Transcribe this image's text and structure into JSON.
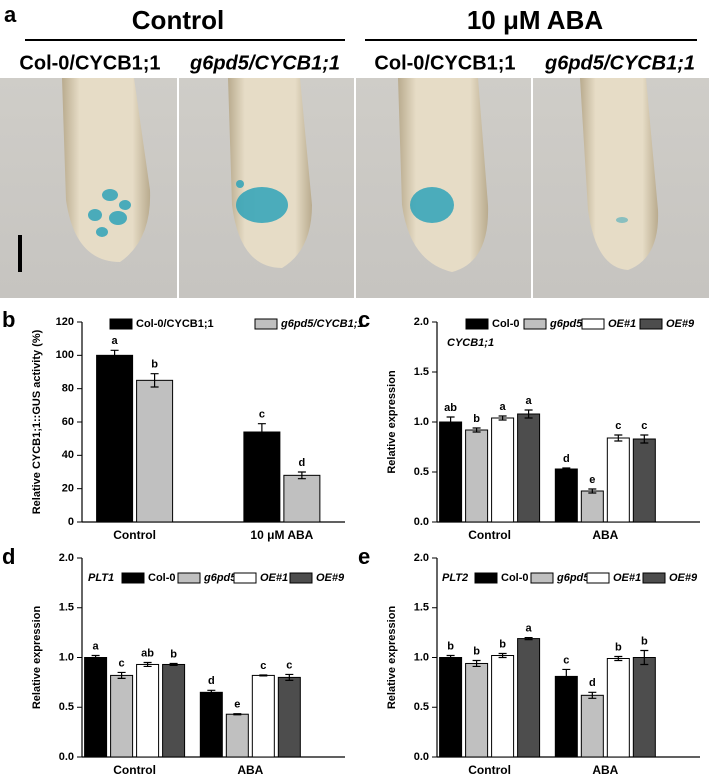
{
  "panel_a": {
    "label": "a",
    "groups": [
      "Control",
      "10 μM ABA"
    ],
    "genotypes": [
      "Col-0/CYCB1;1",
      "g6pd5/CYCB1;1",
      "Col-0/CYCB1;1",
      "g6pd5/CYCB1;1"
    ]
  },
  "chart_data": [
    {
      "type": "bar",
      "panel": "b",
      "ylabel": "Relative CYCB1;1::GUS activity (%)",
      "categories": [
        "Control",
        "10 μM ABA"
      ],
      "series": [
        {
          "name": "Col-0/CYCB1;1",
          "color": "#000000",
          "values": [
            100,
            54
          ],
          "errors": [
            3,
            5
          ],
          "letters": [
            "a",
            "c"
          ]
        },
        {
          "name": "g6pd5/CYCB1;1",
          "color": "#c0c0c0",
          "values": [
            85,
            28
          ],
          "errors": [
            4,
            2
          ],
          "letters": [
            "b",
            "d"
          ]
        }
      ],
      "ylim": [
        0,
        120
      ],
      "yticks": [
        0,
        20,
        40,
        60,
        80,
        100,
        120
      ]
    },
    {
      "type": "bar",
      "panel": "c",
      "gene": "CYCB1;1",
      "ylabel": "Relative expression",
      "categories": [
        "Control",
        "ABA"
      ],
      "series": [
        {
          "name": "Col-0",
          "color": "#000000",
          "values": [
            1.0,
            0.53
          ],
          "errors": [
            0.05,
            0.01
          ],
          "letters": [
            "ab",
            "d"
          ]
        },
        {
          "name": "g6pd5",
          "color": "#c0c0c0",
          "values": [
            0.92,
            0.31
          ],
          "errors": [
            0.02,
            0.02
          ],
          "letters": [
            "b",
            "e"
          ]
        },
        {
          "name": "OE#1",
          "color": "#ffffff",
          "values": [
            1.04,
            0.84
          ],
          "errors": [
            0.02,
            0.03
          ],
          "letters": [
            "a",
            "c"
          ]
        },
        {
          "name": "OE#9",
          "color": "#4d4d4d",
          "values": [
            1.08,
            0.83
          ],
          "errors": [
            0.04,
            0.04
          ],
          "letters": [
            "a",
            "c"
          ]
        }
      ],
      "ylim": [
        0,
        2
      ],
      "yticks": [
        {
          "value": 0,
          "label": "0.0"
        },
        {
          "value": 0.5,
          "label": "0.5"
        },
        {
          "value": 1,
          "label": "1.0"
        },
        {
          "value": 1.5,
          "label": "1.5"
        },
        {
          "value": 2,
          "label": "2.0"
        }
      ]
    },
    {
      "type": "bar",
      "panel": "d",
      "gene": "PLT1",
      "ylabel": "Relative expression",
      "categories": [
        "Control",
        "ABA"
      ],
      "series": [
        {
          "name": "Col-0",
          "color": "#000000",
          "values": [
            1.0,
            0.65
          ],
          "errors": [
            0.02,
            0.02
          ],
          "letters": [
            "a",
            "d"
          ]
        },
        {
          "name": "g6pd5",
          "color": "#c0c0c0",
          "values": [
            0.82,
            0.43
          ],
          "errors": [
            0.03,
            0.005
          ],
          "letters": [
            "c",
            "e"
          ]
        },
        {
          "name": "OE#1",
          "color": "#ffffff",
          "values": [
            0.93,
            0.82
          ],
          "errors": [
            0.02,
            0.005
          ],
          "letters": [
            "ab",
            "c"
          ]
        },
        {
          "name": "OE#9",
          "color": "#4d4d4d",
          "values": [
            0.93,
            0.8
          ],
          "errors": [
            0.01,
            0.03
          ],
          "letters": [
            "b",
            "c"
          ]
        }
      ],
      "ylim": [
        0,
        2
      ],
      "yticks": [
        {
          "value": 0,
          "label": "0.0"
        },
        {
          "value": 0.5,
          "label": "0.5"
        },
        {
          "value": 1,
          "label": "1.0"
        },
        {
          "value": 1.5,
          "label": "1.5"
        },
        {
          "value": 2,
          "label": "2.0"
        }
      ]
    },
    {
      "type": "bar",
      "panel": "e",
      "gene": "PLT2",
      "ylabel": "Relative expression",
      "categories": [
        "Control",
        "ABA"
      ],
      "series": [
        {
          "name": "Col-0",
          "color": "#000000",
          "values": [
            1.0,
            0.81
          ],
          "errors": [
            0.02,
            0.07
          ],
          "letters": [
            "b",
            "c"
          ]
        },
        {
          "name": "g6pd5",
          "color": "#c0c0c0",
          "values": [
            0.94,
            0.62
          ],
          "errors": [
            0.03,
            0.03
          ],
          "letters": [
            "b",
            "d"
          ]
        },
        {
          "name": "OE#1",
          "color": "#ffffff",
          "values": [
            1.02,
            0.99
          ],
          "errors": [
            0.02,
            0.02
          ],
          "letters": [
            "b",
            "b"
          ]
        },
        {
          "name": "OE#9",
          "color": "#4d4d4d",
          "values": [
            1.19,
            1.0
          ],
          "errors": [
            0.01,
            0.07
          ],
          "letters": [
            "a",
            "b"
          ]
        }
      ],
      "ylim": [
        0,
        2
      ],
      "yticks": [
        {
          "value": 0,
          "label": "0.0"
        },
        {
          "value": 0.5,
          "label": "0.5"
        },
        {
          "value": 1,
          "label": "1.0"
        },
        {
          "value": 1.5,
          "label": "1.5"
        },
        {
          "value": 2,
          "label": "2.0"
        }
      ]
    }
  ]
}
